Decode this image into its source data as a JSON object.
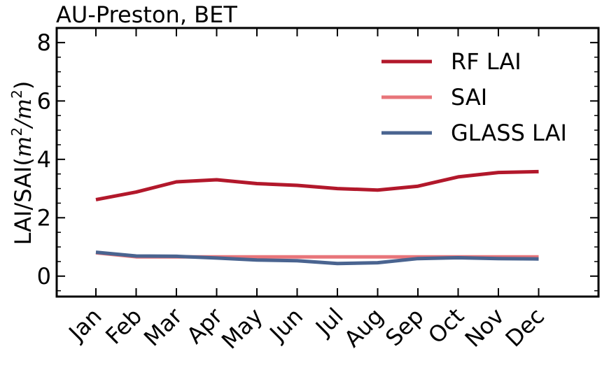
{
  "chart_data": {
    "type": "line",
    "title": "AU-Preston, BET",
    "ylabel": "LAI/SAI(m²/m²)",
    "ylabel_parts": {
      "prefix": "LAI/SAI(",
      "a": "m",
      "exp1": "2",
      "slash": "/",
      "b": "m",
      "exp2": "2",
      "suffix": ")"
    },
    "xlabel": "",
    "categories": [
      "Jan",
      "Feb",
      "Mar",
      "Apr",
      "May",
      "Jun",
      "Jul",
      "Aug",
      "Sep",
      "Oct",
      "Nov",
      "Dec"
    ],
    "ylim": [
      -0.7,
      8.5
    ],
    "yticks": [
      "0",
      "2",
      "4",
      "6",
      "8"
    ],
    "legend_position": "top-right",
    "grid": false,
    "series": [
      {
        "name": "RF LAI",
        "color": "#b2182b",
        "values": [
          2.62,
          2.88,
          3.23,
          3.3,
          3.17,
          3.11,
          3.0,
          2.95,
          3.08,
          3.4,
          3.55,
          3.58
        ]
      },
      {
        "name": "SAI",
        "color": "#e8757a",
        "values": [
          0.8,
          0.66,
          0.66,
          0.66,
          0.66,
          0.66,
          0.66,
          0.66,
          0.66,
          0.66,
          0.66,
          0.66
        ]
      },
      {
        "name": "GLASS LAI",
        "color": "#4a6490",
        "values": [
          0.82,
          0.69,
          0.68,
          0.62,
          0.55,
          0.53,
          0.43,
          0.46,
          0.6,
          0.63,
          0.6,
          0.59
        ]
      }
    ]
  }
}
